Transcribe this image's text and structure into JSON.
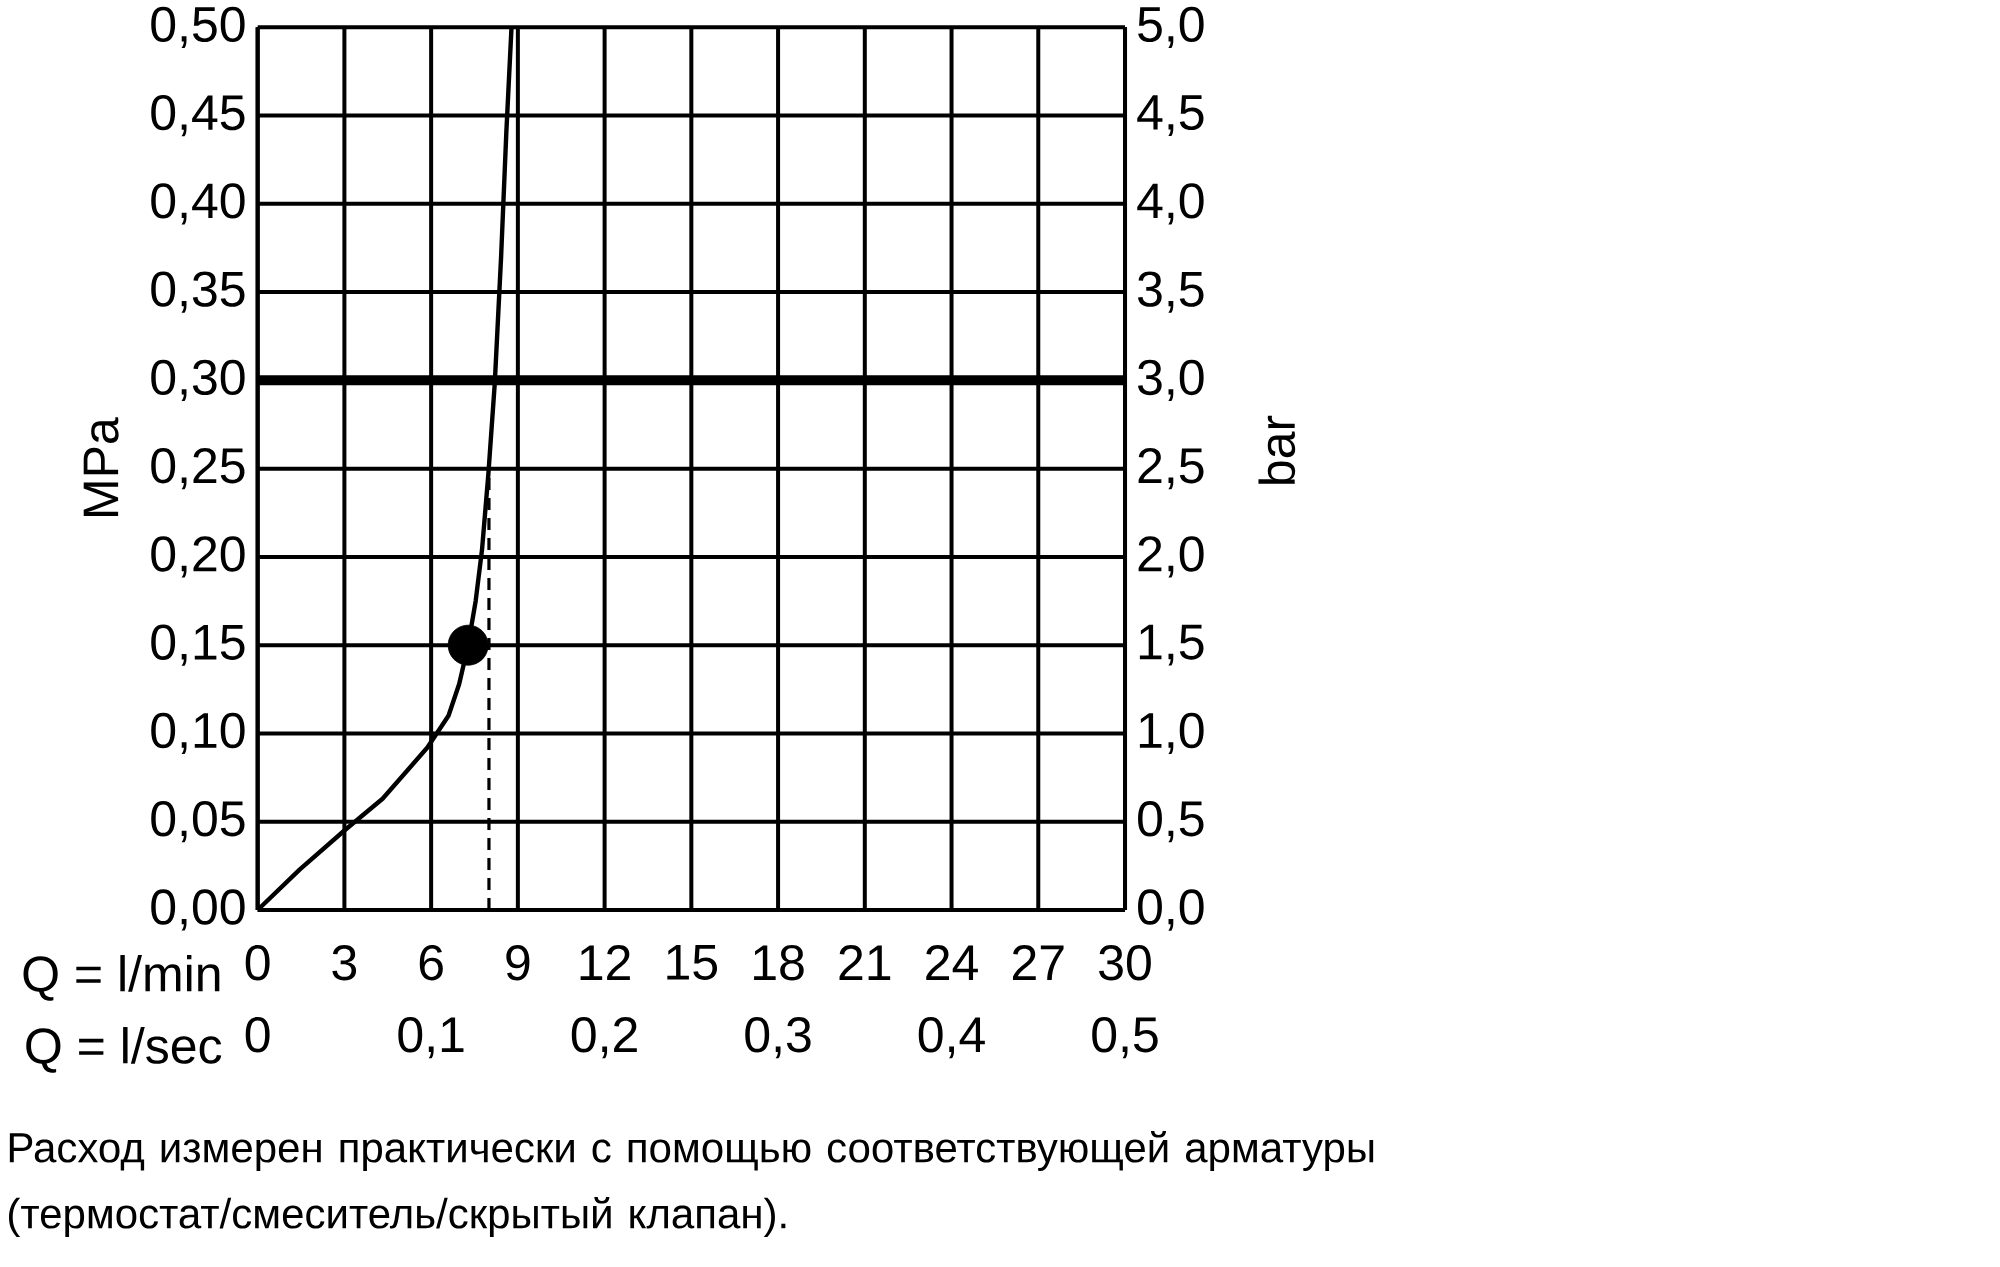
{
  "chart_data": {
    "type": "line",
    "xlabel": "Q = l/min",
    "x2label": "Q = l/sec",
    "ylabel": "MPa",
    "y2label": "bar",
    "xlim": [
      0,
      30
    ],
    "xticks": [
      0,
      3,
      6,
      9,
      12,
      15,
      18,
      21,
      24,
      27,
      30
    ],
    "x2lim": [
      0,
      0.5
    ],
    "x2ticks": [
      0,
      {
        "value": 0.1,
        "label": "0,1"
      },
      {
        "value": 0.2,
        "label": "0,2"
      },
      {
        "value": 0.3,
        "label": "0,3"
      },
      {
        "value": 0.4,
        "label": "0,4"
      },
      {
        "value": 0.5,
        "label": "0,5"
      }
    ],
    "ylim": [
      0,
      0.5
    ],
    "yticks": [
      {
        "value": 0,
        "label": "0,00"
      },
      {
        "value": 0.05,
        "label": "0,05"
      },
      {
        "value": 0.1,
        "label": "0,10"
      },
      {
        "value": 0.15,
        "label": "0,15"
      },
      {
        "value": 0.2,
        "label": "0,20"
      },
      {
        "value": 0.25,
        "label": "0,25"
      },
      {
        "value": 0.3,
        "label": "0,30"
      },
      {
        "value": 0.35,
        "label": "0,35"
      },
      {
        "value": 0.4,
        "label": "0,40"
      },
      {
        "value": 0.45,
        "label": "0,45"
      },
      {
        "value": 0.5,
        "label": "0,50"
      }
    ],
    "y2lim": [
      0,
      5
    ],
    "y2ticks": [
      {
        "value": 0,
        "label": "0,0"
      },
      {
        "value": 0.5,
        "label": "0,5"
      },
      {
        "value": 1,
        "label": "1,0"
      },
      {
        "value": 1.5,
        "label": "1,5"
      },
      {
        "value": 2,
        "label": "2,0"
      },
      {
        "value": 2.5,
        "label": "2,5"
      },
      {
        "value": 3,
        "label": "3,0"
      },
      {
        "value": 3.5,
        "label": "3,5"
      },
      {
        "value": 4,
        "label": "4,0"
      },
      {
        "value": 4.5,
        "label": "4,5"
      },
      {
        "value": 5,
        "label": "5,0"
      }
    ],
    "grid": true,
    "series": [
      {
        "color": "#000000",
        "marker": "none",
        "x": [
          0,
          1.46,
          3,
          4.32,
          5.87,
          6.6,
          6.97,
          7.28,
          7.54,
          7.76,
          7.98,
          8.2,
          8.42,
          8.6,
          8.78
        ],
        "values": [
          0,
          0.023,
          0.045,
          0.063,
          0.092,
          0.11,
          0.128,
          0.15,
          0.175,
          0.204,
          0.247,
          0.298,
          0.37,
          0.44,
          0.5
        ]
      },
      {
        "type": "scatter",
        "color": "#000000",
        "marker": "circle",
        "x": [
          7.28
        ],
        "values": [
          0.15
        ]
      }
    ],
    "ref_lines": [
      {
        "axis": "y",
        "value": 0.3,
        "color": "#000000",
        "line_style": "solid"
      },
      {
        "axis": "x",
        "value": 8,
        "color": "#000000",
        "line_style": "dashed"
      }
    ],
    "annotations": [
      "Расход измерен практически с помощью соответствующей арматуры (термостат/смеситель/скрытый клапан)."
    ]
  }
}
